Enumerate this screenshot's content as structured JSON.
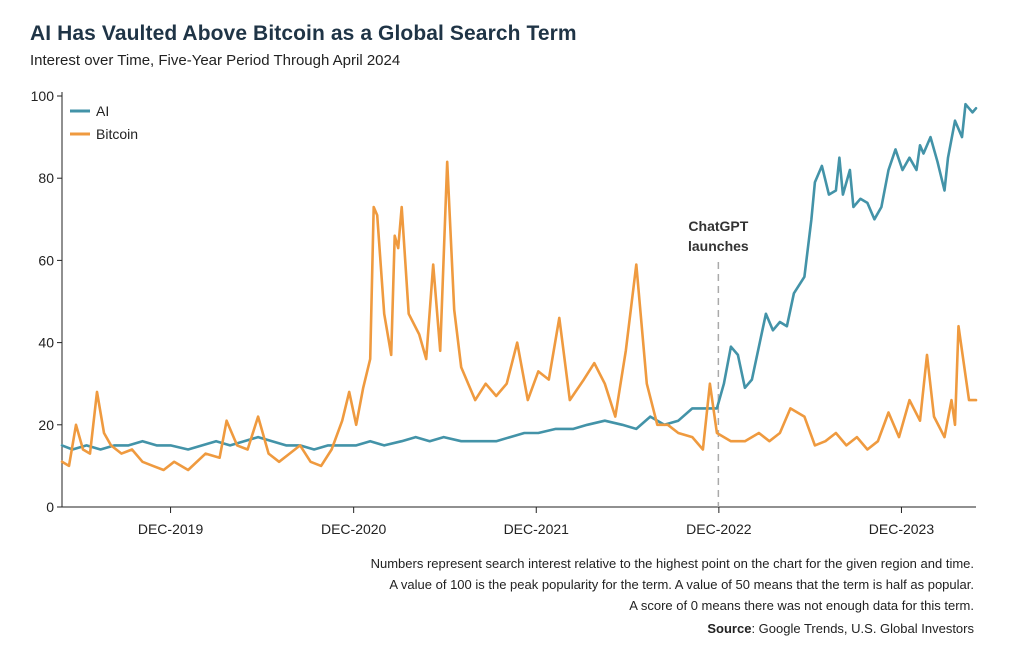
{
  "title": "AI Has Vaulted Above Bitcoin as a Global Search Term",
  "subtitle": "Interest over Time, Five-Year Period Through April 2024",
  "notes": [
    "Numbers represent search interest relative to the highest point on the chart for the given region and time.",
    "A value of 100 is the peak popularity for the term. A value of 50 means that the term is half as popular.",
    "A score of 0 means there was not enough data for this term."
  ],
  "source_label": "Source",
  "source_text": ": Google Trends, U.S. Global Investors",
  "chart_data": {
    "type": "line",
    "ylim": [
      0,
      100
    ],
    "yticks": [
      0,
      20,
      40,
      60,
      80,
      100
    ],
    "xlim": [
      "2019-04-28",
      "2024-04-28"
    ],
    "xtick_labels": [
      {
        "label": "DEC-2019",
        "date": "2019-12-01"
      },
      {
        "label": "DEC-2020",
        "date": "2020-12-01"
      },
      {
        "label": "DEC-2021",
        "date": "2021-12-01"
      },
      {
        "label": "DEC-2022",
        "date": "2022-12-01"
      },
      {
        "label": "DEC-2023",
        "date": "2023-12-01"
      }
    ],
    "annotation": {
      "lines": [
        "ChatGPT",
        "launches"
      ],
      "date": "2022-11-30"
    },
    "legend_position": "top-left",
    "colors": {
      "AI": "#4393a8",
      "Bitcoin": "#ef9a3f"
    },
    "series": [
      {
        "name": "AI",
        "color": "#4393a8",
        "points": [
          [
            "2019-04-28",
            15
          ],
          [
            "2019-05-19",
            14
          ],
          [
            "2019-06-16",
            15
          ],
          [
            "2019-07-14",
            14
          ],
          [
            "2019-08-11",
            15
          ],
          [
            "2019-09-08",
            15
          ],
          [
            "2019-10-06",
            16
          ],
          [
            "2019-11-03",
            15
          ],
          [
            "2019-12-01",
            15
          ],
          [
            "2020-01-05",
            14
          ],
          [
            "2020-02-02",
            15
          ],
          [
            "2020-03-01",
            16
          ],
          [
            "2020-03-29",
            15
          ],
          [
            "2020-04-26",
            16
          ],
          [
            "2020-05-24",
            17
          ],
          [
            "2020-06-21",
            16
          ],
          [
            "2020-07-19",
            15
          ],
          [
            "2020-08-16",
            15
          ],
          [
            "2020-09-13",
            14
          ],
          [
            "2020-10-11",
            15
          ],
          [
            "2020-11-08",
            15
          ],
          [
            "2020-12-06",
            15
          ],
          [
            "2021-01-03",
            16
          ],
          [
            "2021-01-31",
            15
          ],
          [
            "2021-03-07",
            16
          ],
          [
            "2021-04-04",
            17
          ],
          [
            "2021-05-02",
            16
          ],
          [
            "2021-05-30",
            17
          ],
          [
            "2021-07-04",
            16
          ],
          [
            "2021-08-08",
            16
          ],
          [
            "2021-09-12",
            16
          ],
          [
            "2021-10-10",
            17
          ],
          [
            "2021-11-07",
            18
          ],
          [
            "2021-12-05",
            18
          ],
          [
            "2022-01-09",
            19
          ],
          [
            "2022-02-13",
            19
          ],
          [
            "2022-03-13",
            20
          ],
          [
            "2022-04-17",
            21
          ],
          [
            "2022-05-22",
            20
          ],
          [
            "2022-06-19",
            19
          ],
          [
            "2022-07-17",
            22
          ],
          [
            "2022-08-14",
            20
          ],
          [
            "2022-09-11",
            21
          ],
          [
            "2022-10-09",
            24
          ],
          [
            "2022-11-06",
            24
          ],
          [
            "2022-11-27",
            24
          ],
          [
            "2022-12-11",
            30
          ],
          [
            "2022-12-25",
            39
          ],
          [
            "2023-01-08",
            37
          ],
          [
            "2023-01-22",
            29
          ],
          [
            "2023-02-05",
            31
          ],
          [
            "2023-02-19",
            39
          ],
          [
            "2023-03-05",
            47
          ],
          [
            "2023-03-19",
            43
          ],
          [
            "2023-04-02",
            45
          ],
          [
            "2023-04-16",
            44
          ],
          [
            "2023-04-30",
            52
          ],
          [
            "2023-05-21",
            56
          ],
          [
            "2023-06-04",
            70
          ],
          [
            "2023-06-11",
            79
          ],
          [
            "2023-06-25",
            83
          ],
          [
            "2023-07-09",
            76
          ],
          [
            "2023-07-23",
            77
          ],
          [
            "2023-07-30",
            85
          ],
          [
            "2023-08-06",
            76
          ],
          [
            "2023-08-20",
            82
          ],
          [
            "2023-08-27",
            73
          ],
          [
            "2023-09-10",
            75
          ],
          [
            "2023-09-24",
            74
          ],
          [
            "2023-10-08",
            70
          ],
          [
            "2023-10-22",
            73
          ],
          [
            "2023-11-05",
            82
          ],
          [
            "2023-11-19",
            87
          ],
          [
            "2023-12-03",
            82
          ],
          [
            "2023-12-17",
            85
          ],
          [
            "2023-12-31",
            82
          ],
          [
            "2024-01-07",
            88
          ],
          [
            "2024-01-14",
            86
          ],
          [
            "2024-01-28",
            90
          ],
          [
            "2024-02-11",
            84
          ],
          [
            "2024-02-25",
            77
          ],
          [
            "2024-03-03",
            85
          ],
          [
            "2024-03-17",
            94
          ],
          [
            "2024-03-31",
            90
          ],
          [
            "2024-04-07",
            98
          ],
          [
            "2024-04-14",
            97
          ],
          [
            "2024-04-21",
            96
          ],
          [
            "2024-04-28",
            97
          ]
        ]
      },
      {
        "name": "Bitcoin",
        "color": "#ef9a3f",
        "points": [
          [
            "2019-04-28",
            11
          ],
          [
            "2019-05-12",
            10
          ],
          [
            "2019-05-26",
            20
          ],
          [
            "2019-06-09",
            14
          ],
          [
            "2019-06-23",
            13
          ],
          [
            "2019-07-07",
            28
          ],
          [
            "2019-07-21",
            18
          ],
          [
            "2019-08-04",
            15
          ],
          [
            "2019-08-25",
            13
          ],
          [
            "2019-09-15",
            14
          ],
          [
            "2019-10-06",
            11
          ],
          [
            "2019-10-27",
            10
          ],
          [
            "2019-11-17",
            9
          ],
          [
            "2019-12-08",
            11
          ],
          [
            "2020-01-05",
            9
          ],
          [
            "2020-02-09",
            13
          ],
          [
            "2020-03-08",
            12
          ],
          [
            "2020-03-22",
            21
          ],
          [
            "2020-04-12",
            15
          ],
          [
            "2020-05-03",
            14
          ],
          [
            "2020-05-24",
            22
          ],
          [
            "2020-06-14",
            13
          ],
          [
            "2020-07-05",
            11
          ],
          [
            "2020-07-26",
            13
          ],
          [
            "2020-08-16",
            15
          ],
          [
            "2020-09-06",
            11
          ],
          [
            "2020-09-27",
            10
          ],
          [
            "2020-10-18",
            14
          ],
          [
            "2020-11-08",
            21
          ],
          [
            "2020-11-22",
            28
          ],
          [
            "2020-12-06",
            20
          ],
          [
            "2020-12-20",
            29
          ],
          [
            "2021-01-03",
            36
          ],
          [
            "2021-01-10",
            73
          ],
          [
            "2021-01-17",
            71
          ],
          [
            "2021-01-31",
            47
          ],
          [
            "2021-02-14",
            37
          ],
          [
            "2021-02-21",
            66
          ],
          [
            "2021-02-28",
            63
          ],
          [
            "2021-03-07",
            73
          ],
          [
            "2021-03-21",
            47
          ],
          [
            "2021-04-11",
            42
          ],
          [
            "2021-04-25",
            36
          ],
          [
            "2021-05-09",
            59
          ],
          [
            "2021-05-23",
            38
          ],
          [
            "2021-06-06",
            84
          ],
          [
            "2021-06-20",
            48
          ],
          [
            "2021-07-04",
            34
          ],
          [
            "2021-07-18",
            30
          ],
          [
            "2021-08-01",
            26
          ],
          [
            "2021-08-22",
            30
          ],
          [
            "2021-09-12",
            27
          ],
          [
            "2021-10-03",
            30
          ],
          [
            "2021-10-24",
            40
          ],
          [
            "2021-11-14",
            26
          ],
          [
            "2021-12-05",
            33
          ],
          [
            "2021-12-26",
            31
          ],
          [
            "2022-01-16",
            46
          ],
          [
            "2022-02-06",
            26
          ],
          [
            "2022-03-06",
            31
          ],
          [
            "2022-03-27",
            35
          ],
          [
            "2022-04-17",
            30
          ],
          [
            "2022-05-08",
            22
          ],
          [
            "2022-05-29",
            38
          ],
          [
            "2022-06-19",
            59
          ],
          [
            "2022-07-10",
            30
          ],
          [
            "2022-07-31",
            20
          ],
          [
            "2022-08-21",
            20
          ],
          [
            "2022-09-11",
            18
          ],
          [
            "2022-10-09",
            17
          ],
          [
            "2022-10-30",
            14
          ],
          [
            "2022-11-13",
            30
          ],
          [
            "2022-11-27",
            18
          ],
          [
            "2022-12-25",
            16
          ],
          [
            "2023-01-22",
            16
          ],
          [
            "2023-02-19",
            18
          ],
          [
            "2023-03-12",
            16
          ],
          [
            "2023-04-02",
            18
          ],
          [
            "2023-04-23",
            24
          ],
          [
            "2023-05-21",
            22
          ],
          [
            "2023-06-11",
            15
          ],
          [
            "2023-07-02",
            16
          ],
          [
            "2023-07-23",
            18
          ],
          [
            "2023-08-13",
            15
          ],
          [
            "2023-09-03",
            17
          ],
          [
            "2023-09-24",
            14
          ],
          [
            "2023-10-15",
            16
          ],
          [
            "2023-11-05",
            23
          ],
          [
            "2023-11-26",
            17
          ],
          [
            "2023-12-17",
            26
          ],
          [
            "2024-01-07",
            21
          ],
          [
            "2024-01-21",
            37
          ],
          [
            "2024-02-04",
            22
          ],
          [
            "2024-02-25",
            17
          ],
          [
            "2024-03-10",
            26
          ],
          [
            "2024-03-17",
            20
          ],
          [
            "2024-03-24",
            44
          ],
          [
            "2024-03-31",
            38
          ],
          [
            "2024-04-14",
            26
          ],
          [
            "2024-04-28",
            26
          ]
        ]
      }
    ]
  }
}
